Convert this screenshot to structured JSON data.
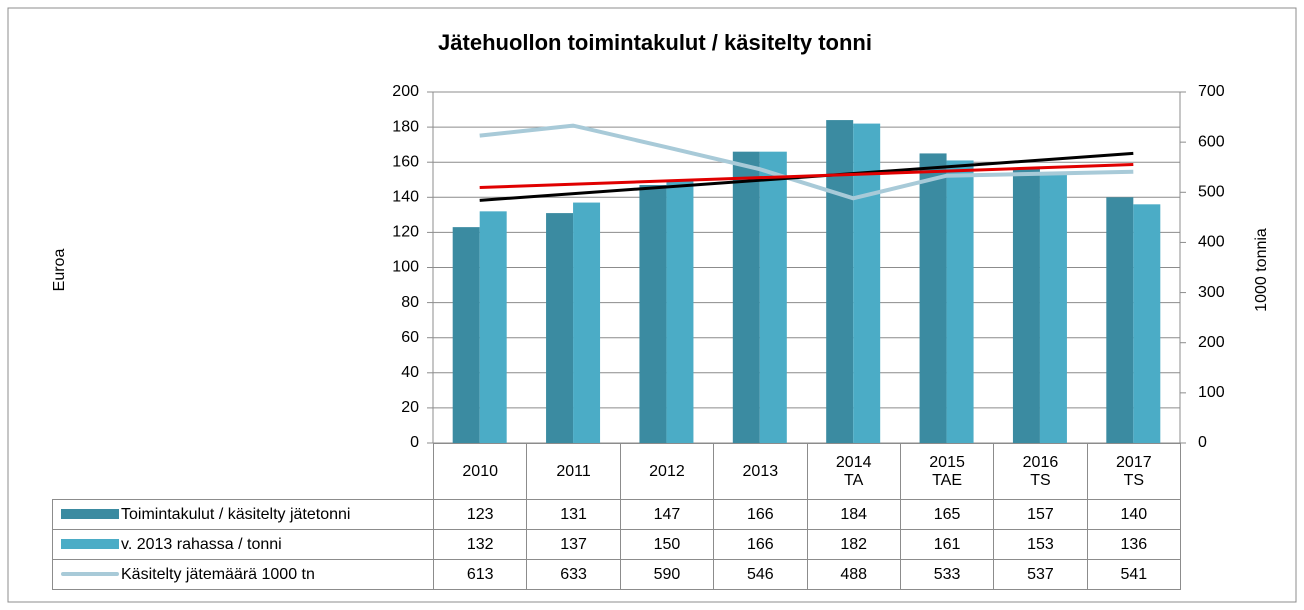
{
  "chart_data": {
    "type": "bar",
    "title": "Jätehuollon toimintakulut / käsitelty tonni",
    "ylabel": "Euroa",
    "y2label": "1000 tonnia",
    "categories": [
      "2010",
      "2011",
      "2012",
      "2013",
      "2014 TA",
      "2015 TAE",
      "2016 TS",
      "2017 TS"
    ],
    "series": [
      {
        "name": "Toimintakulut / käsitelty jätetonni",
        "type": "bar",
        "color": "#3b8ba1",
        "trendline_color": "#000000",
        "values": [
          123,
          131,
          147,
          166,
          184,
          165,
          157,
          140
        ]
      },
      {
        "name": "v. 2013 rahassa / tonni",
        "type": "bar",
        "color": "#4bacc6",
        "trendline_color": "#e00000",
        "values": [
          132,
          137,
          150,
          166,
          182,
          161,
          153,
          136
        ]
      },
      {
        "name": "Käsitelty jätemäärä 1000 tn",
        "type": "line",
        "axis": "y2",
        "color": "#a8cad8",
        "values": [
          613,
          633,
          590,
          546,
          488,
          533,
          537,
          541
        ]
      }
    ],
    "ylim": [
      0,
      200
    ],
    "yticks": [
      0,
      20,
      40,
      60,
      80,
      100,
      120,
      140,
      160,
      180,
      200
    ],
    "y2lim": [
      0,
      700
    ],
    "y2ticks": [
      0,
      100,
      200,
      300,
      400,
      500,
      600,
      700
    ],
    "grid": true,
    "data_table": true
  }
}
